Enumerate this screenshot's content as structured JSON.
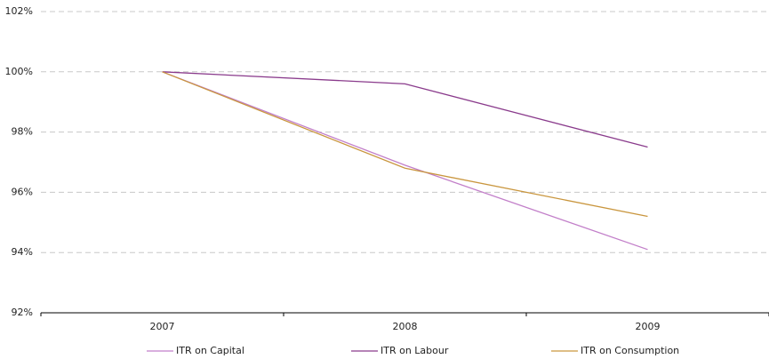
{
  "chart_data": {
    "type": "line",
    "categories": [
      "2007",
      "2008",
      "2009"
    ],
    "series": [
      {
        "name": "ITR on Capital",
        "color": "#c27fc9",
        "values": [
          100,
          96.9,
          94.1
        ]
      },
      {
        "name": "ITR on Labour",
        "color": "#8a3b8c",
        "values": [
          100,
          99.6,
          97.5
        ]
      },
      {
        "name": "ITR on Consumption",
        "color": "#c9963e",
        "values": [
          100,
          96.8,
          95.2
        ]
      }
    ],
    "ylim": [
      92,
      102
    ],
    "yticks": [
      {
        "value": 92,
        "label": "92%"
      },
      {
        "value": 94,
        "label": "94%"
      },
      {
        "value": 96,
        "label": "96%"
      },
      {
        "value": 98,
        "label": "98%"
      },
      {
        "value": 100,
        "label": "100%"
      },
      {
        "value": 102,
        "label": "102%"
      }
    ],
    "grid": true
  }
}
